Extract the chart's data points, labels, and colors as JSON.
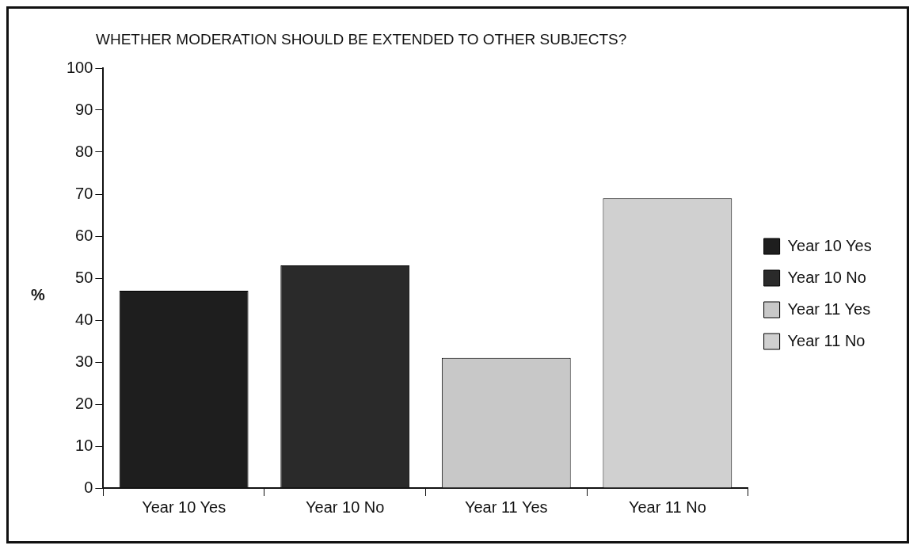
{
  "chart_data": {
    "type": "bar",
    "title": "WHETHER MODERATION SHOULD BE EXTENDED TO OTHER SUBJECTS?",
    "ylabel": "%",
    "categories": [
      "Year 10 Yes",
      "Year 10 No",
      "Year 11 Yes",
      "Year 11 No"
    ],
    "series": [
      {
        "name": "Year 10 Yes",
        "color": "#1e1e1e",
        "values": [
          47,
          null,
          null,
          null
        ]
      },
      {
        "name": "Year 10 No",
        "color": "#2a2a2a",
        "values": [
          null,
          53,
          null,
          null
        ]
      },
      {
        "name": "Year 11 Yes",
        "color": "#c8c8c8",
        "values": [
          null,
          null,
          31,
          null
        ]
      },
      {
        "name": "Year 11 No",
        "color": "#d0d0d0",
        "values": [
          null,
          null,
          null,
          69
        ]
      }
    ],
    "ylim": [
      0,
      100
    ],
    "yticks": [
      0,
      10,
      20,
      30,
      40,
      50,
      60,
      70,
      80,
      90,
      100
    ],
    "grid": false,
    "legend": "right"
  }
}
